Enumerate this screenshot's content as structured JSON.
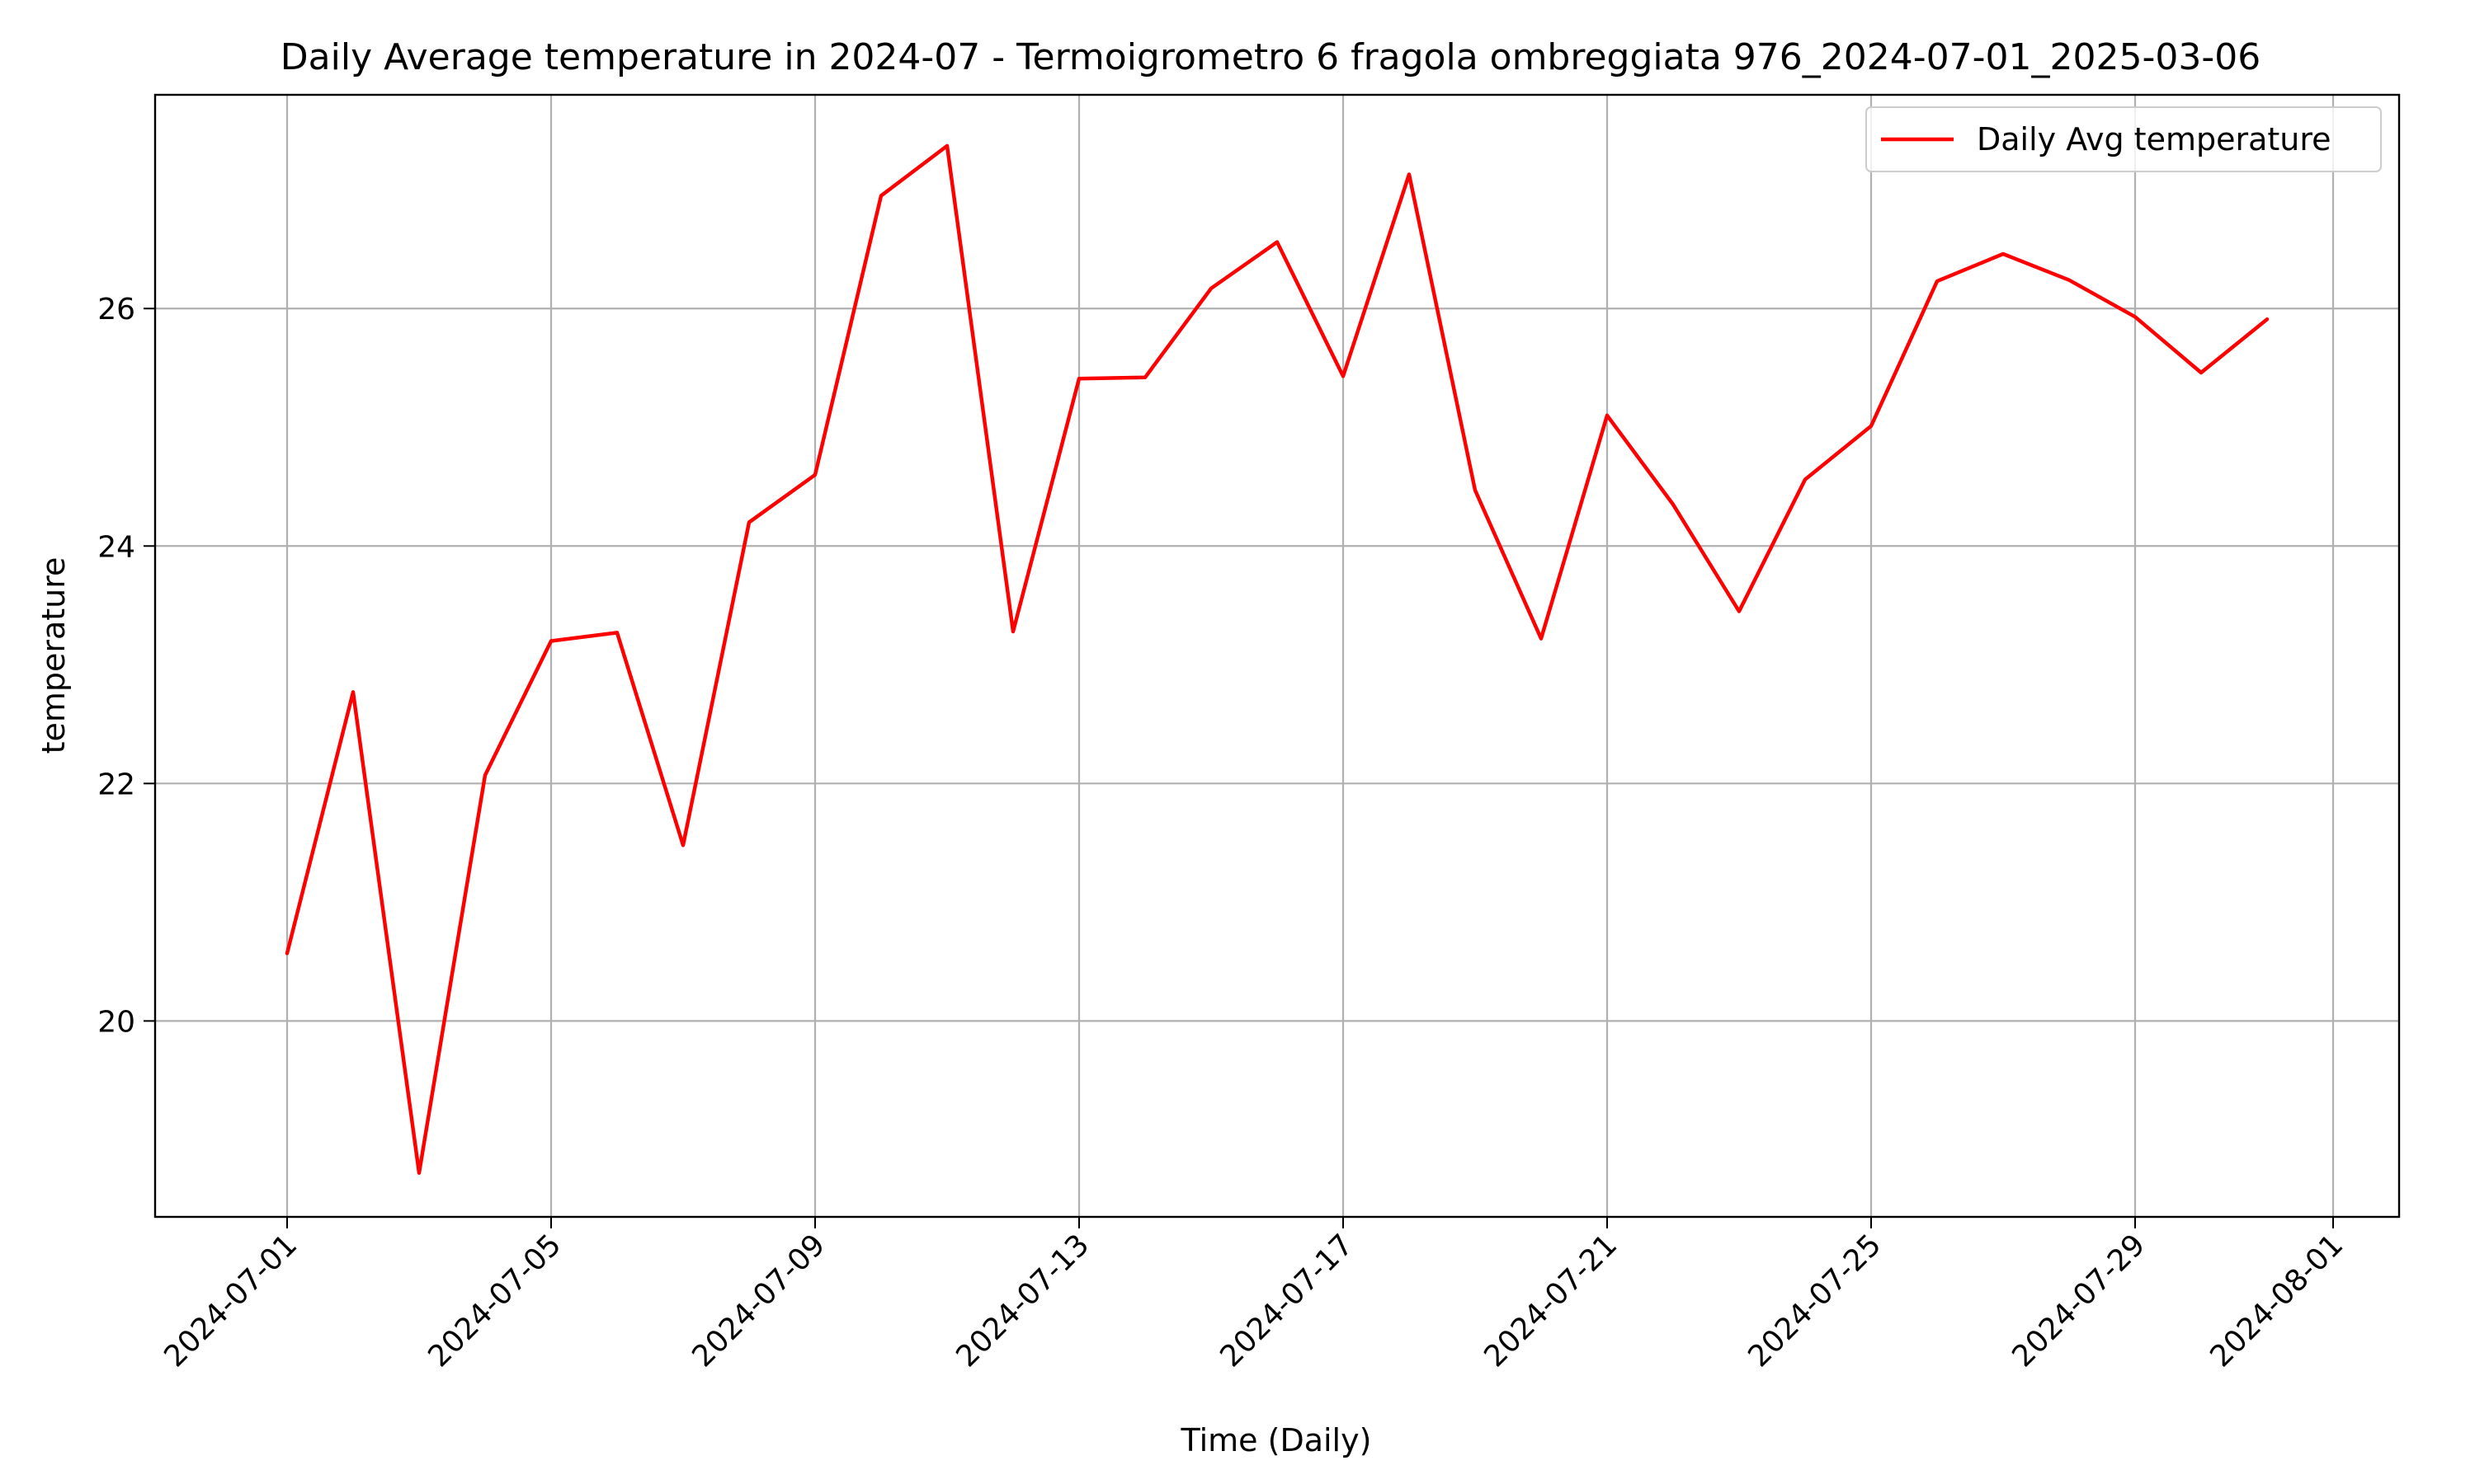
{
  "chart_data": {
    "type": "line",
    "title": "Daily Average temperature in 2024-07 - Termoigrometro 6 fragola ombreggiata 976_2024-07-01_2025-03-06",
    "xlabel": "Time (Daily)",
    "ylabel": "temperature",
    "x_tick_labels": [
      "2024-07-01",
      "2024-07-05",
      "2024-07-09",
      "2024-07-13",
      "2024-07-17",
      "2024-07-21",
      "2024-07-25",
      "2024-07-29",
      "2024-08-01"
    ],
    "y_tick_labels": [
      "20",
      "22",
      "24",
      "26"
    ],
    "xlim": [
      "2024-06-29",
      "2024-08-02"
    ],
    "ylim": [
      18.35,
      27.8
    ],
    "grid": true,
    "legend_position": "top-right",
    "series": [
      {
        "name": "Daily Avg temperature",
        "color": "#ff0000",
        "x": [
          "2024-07-01",
          "2024-07-02",
          "2024-07-03",
          "2024-07-04",
          "2024-07-05",
          "2024-07-06",
          "2024-07-07",
          "2024-07-08",
          "2024-07-09",
          "2024-07-10",
          "2024-07-11",
          "2024-07-12",
          "2024-07-13",
          "2024-07-14",
          "2024-07-15",
          "2024-07-16",
          "2024-07-17",
          "2024-07-18",
          "2024-07-19",
          "2024-07-20",
          "2024-07-21",
          "2024-07-22",
          "2024-07-23",
          "2024-07-24",
          "2024-07-25",
          "2024-07-26",
          "2024-07-27",
          "2024-07-28",
          "2024-07-29",
          "2024-07-30",
          "2024-07-31"
        ],
        "values": [
          20.57,
          22.77,
          18.72,
          22.07,
          23.2,
          23.27,
          21.48,
          24.2,
          24.6,
          26.95,
          27.37,
          23.28,
          25.41,
          25.42,
          26.17,
          26.56,
          25.43,
          27.13,
          24.47,
          23.22,
          25.1,
          24.35,
          23.45,
          24.56,
          25.01,
          26.23,
          26.46,
          26.24,
          25.93,
          25.46,
          25.91
        ]
      }
    ]
  }
}
